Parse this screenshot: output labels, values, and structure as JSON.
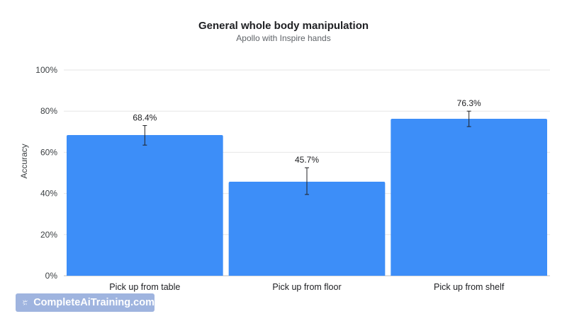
{
  "chart_data": {
    "type": "bar",
    "title": "General whole body manipulation",
    "subtitle": "Apollo with Inspire hands",
    "ylabel": "Accuracy",
    "xlabel": "",
    "ylim": [
      0,
      100
    ],
    "yticks": [
      "0%",
      "20%",
      "40%",
      "60%",
      "80%",
      "100%"
    ],
    "grid": true,
    "categories": [
      "Pick up from table",
      "Pick up from floor",
      "Pick up from shelf"
    ],
    "values": [
      68.4,
      45.7,
      76.3
    ],
    "data_labels": [
      "68.4%",
      "45.7%",
      "76.3%"
    ],
    "error_low": [
      63.5,
      39.5,
      72.5
    ],
    "error_high": [
      73.0,
      52.5,
      80.0
    ],
    "bar_color": "#3d8ef8"
  },
  "watermark": {
    "text": "CompleteAiTraining.com",
    "icon": "spark-logo-icon"
  }
}
